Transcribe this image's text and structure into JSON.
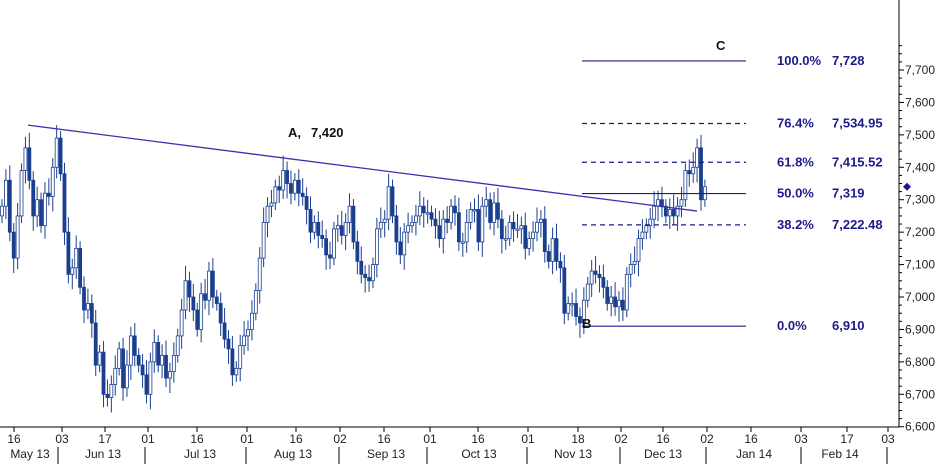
{
  "chart_data": {
    "type": "candlestick",
    "title": "",
    "y_axis": {
      "ylim": [
        6420,
        7880
      ],
      "ticks": [
        "6,600",
        "6,700",
        "6,800",
        "6,900",
        "7,000",
        "7,100",
        "7,200",
        "7,300",
        "7,400",
        "7,500",
        "7,600",
        "7,700"
      ],
      "tick_values": [
        6600,
        6700,
        6800,
        6900,
        7000,
        7100,
        7200,
        7300,
        7400,
        7500,
        7600,
        7700
      ],
      "current_price": 7340
    },
    "x_axis": {
      "day_ticks": [
        "16",
        "03",
        "17",
        "01",
        "16",
        "01",
        "16",
        "02",
        "16",
        "01",
        "16",
        "01",
        "18",
        "02",
        "16",
        "02",
        "16",
        "03",
        "17",
        "03"
      ],
      "month_labels": [
        "May 13",
        "Jun 13",
        "Jul 13",
        "Aug 13",
        "Sep 13",
        "Oct 13",
        "Nov 13",
        "Dec 13",
        "Jan 14",
        "Feb 14"
      ]
    },
    "trendline": {
      "start": {
        "date": "2013-05-16",
        "value": 7530
      },
      "end": {
        "date": "2013-12-23",
        "value": 7265
      }
    },
    "points": [
      {
        "label": "A,",
        "value_label": "7,420"
      },
      {
        "label": "B",
        "value": 6910
      },
      {
        "label": "C",
        "value": 7728
      }
    ],
    "fib_levels": [
      {
        "pct": "100.0%",
        "value_label": "7,728",
        "value": 7728,
        "style": "solid"
      },
      {
        "pct": "76.4%",
        "value_label": "7,534.95",
        "value": 7534.95,
        "style": "dashed"
      },
      {
        "pct": "61.8%",
        "value_label": "7,415.52",
        "value": 7415.52,
        "style": "dashed"
      },
      {
        "pct": "50.0%",
        "value_label": "7,319",
        "value": 7319,
        "style": "solid"
      },
      {
        "pct": "38.2%",
        "value_label": "7,222.48",
        "value": 7222.48,
        "style": "dashed"
      },
      {
        "pct": "0.0%",
        "value_label": "6,910",
        "value": 6910,
        "style": "solid"
      }
    ],
    "closes": [
      7280,
      7360,
      7200,
      7120,
      7250,
      7390,
      7460,
      7360,
      7250,
      7300,
      7220,
      7320,
      7310,
      7400,
      7490,
      7380,
      7200,
      7070,
      7090,
      7150,
      7030,
      6960,
      6980,
      6920,
      6790,
      6830,
      6700,
      6690,
      6730,
      6780,
      6840,
      6720,
      6790,
      6880,
      6820,
      6790,
      6760,
      6700,
      6800,
      6860,
      6790,
      6820,
      6750,
      6770,
      6820,
      6880,
      6960,
      7050,
      7000,
      6960,
      6900,
      7010,
      6990,
      7080,
      7000,
      6980,
      6920,
      6870,
      6840,
      6760,
      6780,
      6850,
      6880,
      6900,
      6950,
      7020,
      7120,
      7230,
      7280,
      7290,
      7340,
      7330,
      7390,
      7350,
      7320,
      7360,
      7320,
      7310,
      7270,
      7200,
      7230,
      7190,
      7180,
      7130,
      7120,
      7210,
      7220,
      7190,
      7230,
      7280,
      7170,
      7110,
      7070,
      7060,
      7050,
      7100,
      7210,
      7230,
      7240,
      7340,
      7250,
      7170,
      7130,
      7200,
      7220,
      7230,
      7250,
      7280,
      7260,
      7260,
      7240,
      7220,
      7180,
      7240,
      7230,
      7280,
      7260,
      7170,
      7170,
      7230,
      7270,
      7270,
      7170,
      7280,
      7300,
      7230,
      7290,
      7240,
      7180,
      7180,
      7230,
      7210,
      7210,
      7220,
      7150,
      7180,
      7200,
      7230,
      7240,
      7140,
      7110,
      7180,
      7110,
      7090,
      6950,
      6980,
      6980,
      6940,
      6920,
      6990,
      7040,
      7080,
      7070,
      7060,
      7030,
      6980,
      7000,
      6970,
      6990,
      6960,
      7070,
      7100,
      7110,
      7180,
      7200,
      7220,
      7240,
      7280,
      7300,
      7280,
      7250,
      7270,
      7250,
      7280,
      7300,
      7390,
      7380,
      7400,
      7460,
      7300,
      7340
    ]
  }
}
